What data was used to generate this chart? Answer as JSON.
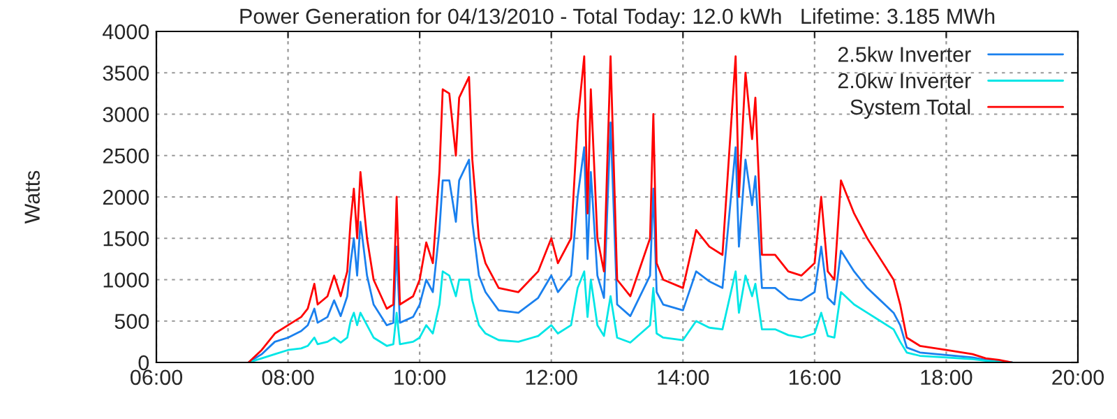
{
  "chart_data": {
    "type": "line",
    "title": "Power Generation for 04/13/2010 - Total Today: 12.0 kWh   Lifetime: 3.185 MWh",
    "ylabel": "Watts",
    "x": [
      7.4,
      7.6,
      7.8,
      8.0,
      8.2,
      8.3,
      8.4,
      8.45,
      8.6,
      8.7,
      8.8,
      8.9,
      8.95,
      9.0,
      9.05,
      9.1,
      9.2,
      9.3,
      9.5,
      9.6,
      9.65,
      9.7,
      9.9,
      10.0,
      10.1,
      10.2,
      10.3,
      10.35,
      10.45,
      10.55,
      10.6,
      10.75,
      10.8,
      10.9,
      11.0,
      11.2,
      11.5,
      11.8,
      12.0,
      12.1,
      12.3,
      12.4,
      12.5,
      12.55,
      12.6,
      12.7,
      12.8,
      12.9,
      13.0,
      13.2,
      13.5,
      13.55,
      13.6,
      13.7,
      14.0,
      14.2,
      14.4,
      14.6,
      14.7,
      14.8,
      14.85,
      14.95,
      15.05,
      15.1,
      15.2,
      15.4,
      15.6,
      15.8,
      16.0,
      16.1,
      16.2,
      16.3,
      16.4,
      16.6,
      16.8,
      17.0,
      17.2,
      17.3,
      17.4,
      17.6,
      18.0,
      18.4,
      18.6,
      18.8,
      19.0
    ],
    "series": [
      {
        "name": "2.5kw Inverter",
        "color": "#1a80ee",
        "values": [
          0,
          100,
          250,
          300,
          380,
          450,
          650,
          480,
          550,
          750,
          560,
          800,
          1200,
          1500,
          1050,
          1700,
          1050,
          700,
          450,
          480,
          1400,
          480,
          550,
          700,
          1000,
          850,
          1600,
          2200,
          2200,
          1700,
          2200,
          2450,
          1700,
          1050,
          850,
          630,
          600,
          780,
          1050,
          850,
          1050,
          2000,
          2600,
          1250,
          2300,
          1050,
          780,
          2900,
          700,
          560,
          1050,
          2100,
          850,
          700,
          630,
          1100,
          980,
          900,
          1750,
          2600,
          1400,
          2450,
          1900,
          2250,
          900,
          900,
          770,
          750,
          850,
          1400,
          780,
          700,
          1350,
          1100,
          900,
          750,
          600,
          450,
          180,
          120,
          90,
          60,
          30,
          20,
          0
        ]
      },
      {
        "name": "2.0kw Inverter",
        "color": "#00e6e6",
        "values": [
          0,
          50,
          100,
          150,
          170,
          200,
          300,
          220,
          250,
          300,
          240,
          300,
          500,
          600,
          450,
          600,
          450,
          300,
          200,
          220,
          600,
          220,
          250,
          300,
          450,
          350,
          700,
          1100,
          1050,
          800,
          1000,
          1000,
          750,
          450,
          350,
          270,
          250,
          320,
          450,
          350,
          450,
          900,
          1100,
          550,
          1000,
          450,
          320,
          800,
          300,
          240,
          450,
          900,
          350,
          300,
          270,
          500,
          420,
          400,
          750,
          1100,
          600,
          1050,
          800,
          950,
          400,
          400,
          330,
          300,
          350,
          600,
          320,
          300,
          850,
          700,
          600,
          500,
          400,
          250,
          120,
          80,
          60,
          40,
          20,
          10,
          0
        ]
      },
      {
        "name": "System Total",
        "color": "#ff0000",
        "values": [
          0,
          150,
          350,
          450,
          550,
          650,
          950,
          700,
          800,
          1050,
          800,
          1100,
          1700,
          2100,
          1500,
          2300,
          1500,
          1000,
          650,
          700,
          2000,
          700,
          800,
          1000,
          1450,
          1200,
          2300,
          3300,
          3250,
          2500,
          3200,
          3450,
          2450,
          1500,
          1200,
          900,
          850,
          1100,
          1500,
          1200,
          1500,
          2900,
          3700,
          1800,
          3300,
          1500,
          1100,
          3700,
          1000,
          800,
          1500,
          3000,
          1200,
          1000,
          900,
          1600,
          1400,
          1300,
          2500,
          3700,
          2000,
          3500,
          2700,
          3200,
          1300,
          1300,
          1100,
          1050,
          1200,
          2000,
          1100,
          1000,
          2200,
          1800,
          1500,
          1250,
          1000,
          700,
          300,
          200,
          150,
          100,
          50,
          30,
          0
        ]
      }
    ],
    "xlim": [
      6,
      20
    ],
    "xticks": [
      {
        "value": 6,
        "label": "06:00"
      },
      {
        "value": 8,
        "label": "08:00"
      },
      {
        "value": 10,
        "label": "10:00"
      },
      {
        "value": 12,
        "label": "12:00"
      },
      {
        "value": 14,
        "label": "14:00"
      },
      {
        "value": 16,
        "label": "16:00"
      },
      {
        "value": 18,
        "label": "18:00"
      },
      {
        "value": 20,
        "label": "20:00"
      }
    ],
    "ylim": [
      0,
      4000
    ],
    "yticks": [
      0,
      500,
      1000,
      1500,
      2000,
      2500,
      3000,
      3500,
      4000
    ],
    "grid": true,
    "legend": "top right",
    "marker": "none",
    "line_style": "solid"
  }
}
